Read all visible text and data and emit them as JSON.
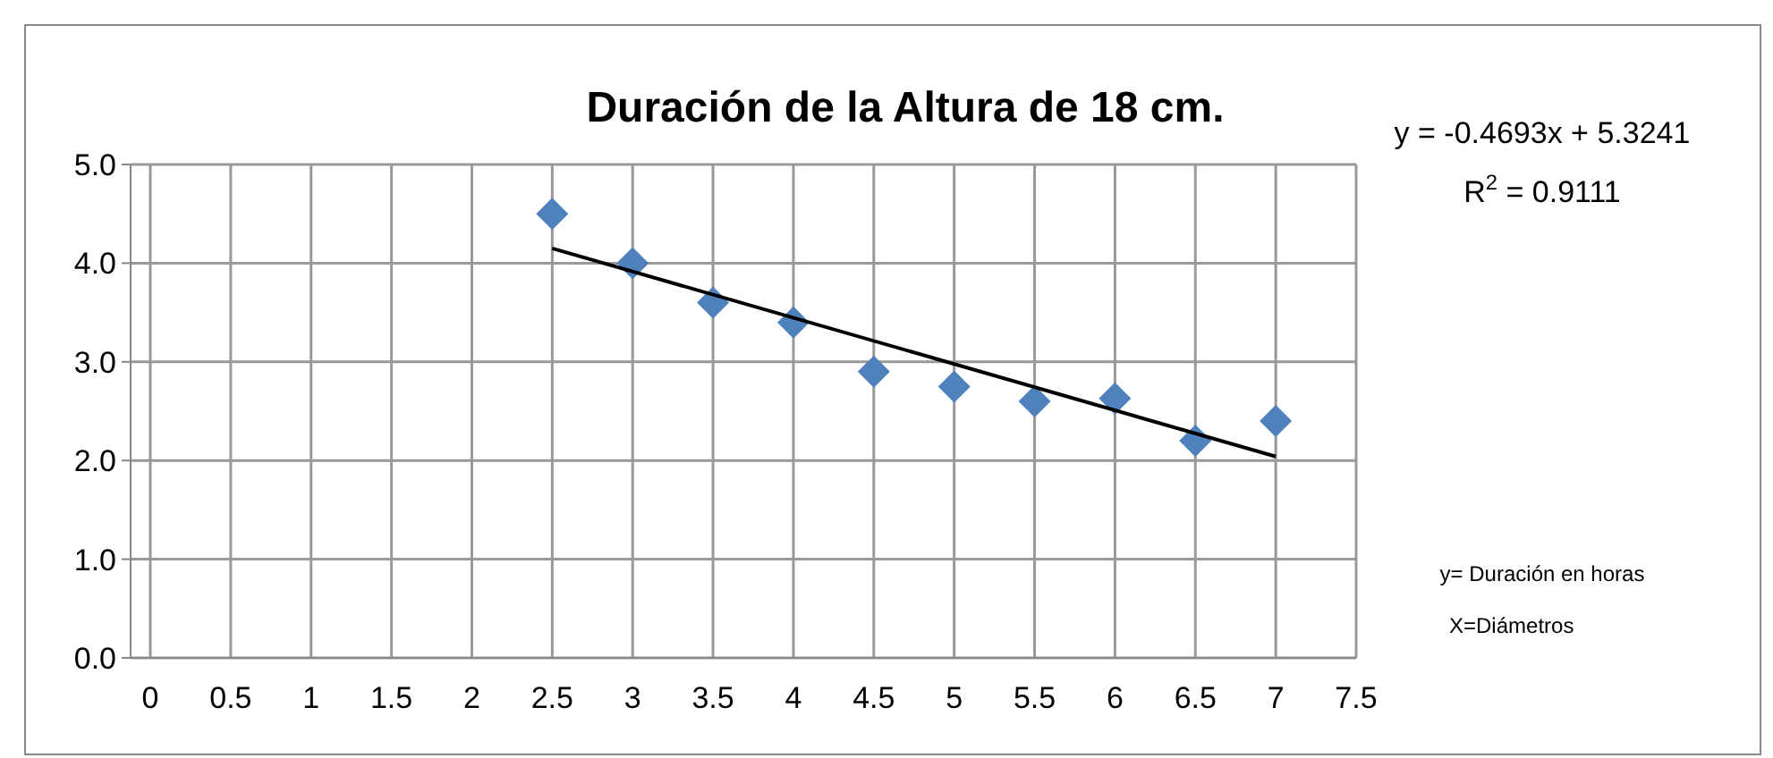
{
  "chart_data": {
    "type": "scatter",
    "title": "Duración de la Altura de 18 cm.",
    "x": [
      2.5,
      3,
      3.5,
      4,
      4.5,
      5,
      5.5,
      6,
      6.5,
      7
    ],
    "series": [
      {
        "color": "#4f81bd",
        "marker": "diamond",
        "values": [
          4.5,
          4.0,
          3.6,
          3.4,
          2.9,
          2.75,
          2.6,
          2.63,
          2.2,
          2.4
        ]
      },
      {
        "type": "line",
        "color": "#000000",
        "x": [
          2.5,
          7
        ],
        "values": [
          4.15,
          2.04
        ]
      }
    ],
    "xlim": [
      0,
      7.5
    ],
    "xticks": [
      0,
      0.5,
      1,
      1.5,
      2,
      2.5,
      3,
      3.5,
      4,
      4.5,
      5,
      5.5,
      6,
      6.5,
      7,
      7.5
    ],
    "ylim": [
      0,
      5
    ],
    "yticks": [
      {
        "value": 0,
        "label": "0.0"
      },
      {
        "value": 1,
        "label": "1.0"
      },
      {
        "value": 2,
        "label": "2.0"
      },
      {
        "value": 3,
        "label": "3.0"
      },
      {
        "value": 4,
        "label": "4.0"
      },
      {
        "value": 5,
        "label": "5.0"
      }
    ],
    "grid": true,
    "annotations": [
      "y = -0.4693x + 5.3241",
      "R$^{2}$ = 0.9111",
      "y= Duración en horas",
      "X=Diámetros"
    ]
  }
}
